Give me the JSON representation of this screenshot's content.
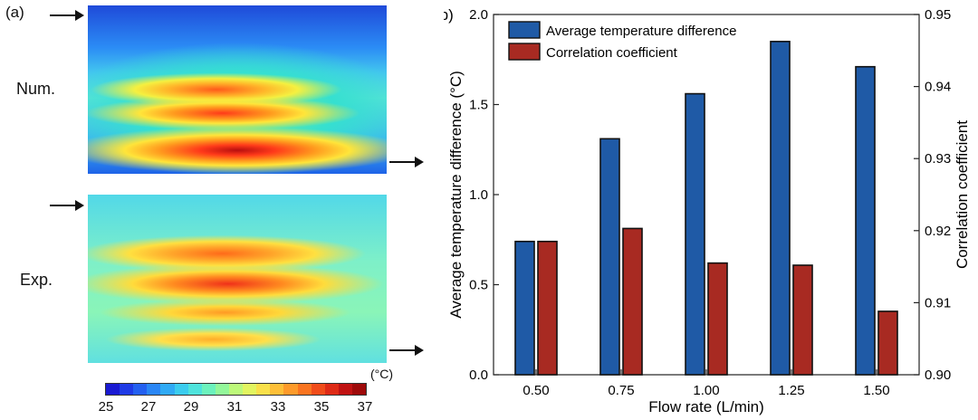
{
  "panel_a": {
    "label": "(a)",
    "row_num_label": "Num.",
    "row_exp_label": "Exp.",
    "colorbar": {
      "unit": "(°C)",
      "ticks": [
        "25",
        "27",
        "29",
        "31",
        "33",
        "35",
        "37"
      ],
      "colors": [
        "#1a1ad2",
        "#1f3be6",
        "#2460f0",
        "#2a86f5",
        "#30aaf5",
        "#3bccee",
        "#4fe3dc",
        "#6cf2bd",
        "#93f79a",
        "#bdf97a",
        "#e2f560",
        "#f9e04a",
        "#fdbf38",
        "#fd9a2a",
        "#f97420",
        "#f04c1a",
        "#de2a16",
        "#c01212",
        "#9e0a0a"
      ]
    }
  },
  "chart_data": {
    "type": "bar",
    "panel_label": "(b)",
    "categories": [
      "0.50",
      "0.75",
      "1.00",
      "1.25",
      "1.50"
    ],
    "series": [
      {
        "name": "Average temperature difference",
        "axis": "left",
        "color": "#1f5aa6",
        "values": [
          0.74,
          1.31,
          1.56,
          1.85,
          1.71
        ]
      },
      {
        "name": "Correlation coefficient",
        "axis": "right",
        "color": "#a82a22",
        "values": [
          0.9185,
          0.9203,
          0.9155,
          0.9152,
          0.9088
        ]
      }
    ],
    "xlabel": "Flow rate (L/min)",
    "ylabel": "Average temperature difference (°C)",
    "y2label": "Correlation coefficient",
    "ylim": [
      0,
      2.0
    ],
    "y2lim": [
      0.9,
      0.95
    ],
    "yticks": [
      "0.0",
      "0.5",
      "1.0",
      "1.5",
      "2.0"
    ],
    "y2ticks": [
      "0.90",
      "0.91",
      "0.92",
      "0.93",
      "0.94",
      "0.95"
    ],
    "legend": "top-left"
  }
}
